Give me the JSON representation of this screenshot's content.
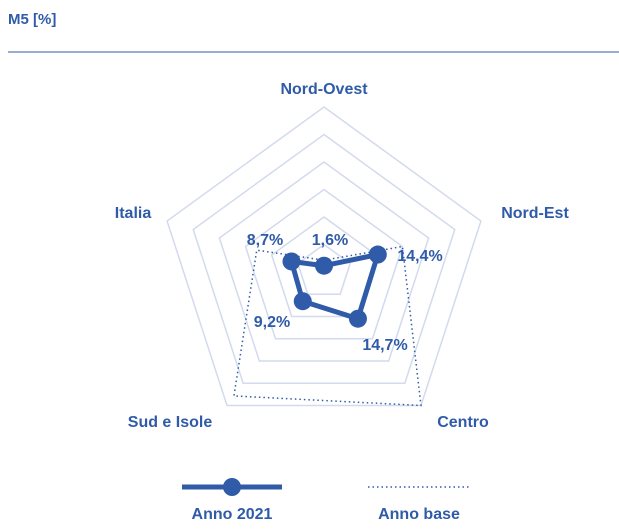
{
  "chart_data": {
    "type": "radar",
    "title": "M5 [%]",
    "categories": [
      "Nord-Ovest",
      "Nord-Est",
      "Centro",
      "Sud e Isole",
      "Italia"
    ],
    "rlim": [
      0,
      42
    ],
    "rticks": [
      7,
      14,
      21,
      28,
      35,
      42
    ],
    "grid": true,
    "series": [
      {
        "name": "Anno 2021",
        "color": "#2f5ba8",
        "values": [
          1.6,
          14.4,
          14.7,
          9.2,
          8.7
        ],
        "value_labels": [
          "1,6%",
          "14,4%",
          "14,7%",
          "9,2%",
          "8,7%"
        ]
      },
      {
        "name": "Anno base",
        "color": "#2f5ba8",
        "values": [
          3,
          21,
          42,
          39,
          18
        ]
      }
    ]
  }
}
